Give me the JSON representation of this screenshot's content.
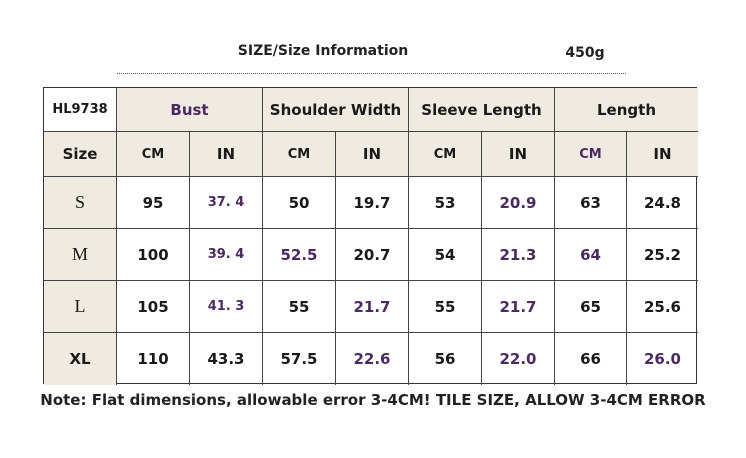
{
  "header": {
    "title": "SIZE/Size Information",
    "weight": "450g"
  },
  "table": {
    "model": "HL9738",
    "groups": [
      "Bust",
      "Shoulder Width",
      "Sleeve Length",
      "Length"
    ],
    "units_label": "Size",
    "units": [
      "CM",
      "IN",
      "CM",
      "IN",
      "CM",
      "IN",
      "CM",
      "IN"
    ],
    "rows": [
      [
        "S",
        "95",
        "37. 4",
        "50",
        "19.7",
        "53",
        "20.9",
        "63",
        "24.8"
      ],
      [
        "M",
        "100",
        "39. 4",
        "52.5",
        "20.7",
        "54",
        "21.3",
        "64",
        "25.2"
      ],
      [
        "L",
        "105",
        "41. 3",
        "55",
        "21.7",
        "55",
        "21.7",
        "65",
        "25.6"
      ],
      [
        "XL",
        "110",
        "43.3",
        "57.5",
        "22.6",
        "56",
        "22.0",
        "66",
        "26.0"
      ]
    ]
  },
  "note": "Note: Flat dimensions, allowable error 3-4CM! TILE SIZE, ALLOW 3-4CM ERROR"
}
